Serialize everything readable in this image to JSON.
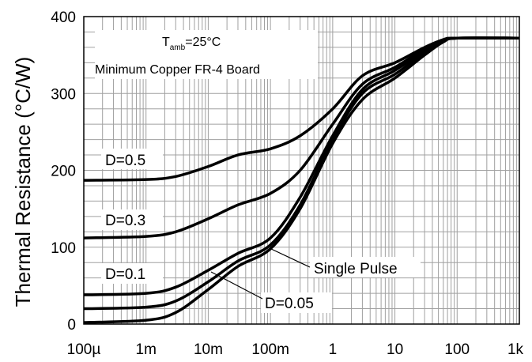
{
  "chart_data": {
    "type": "line",
    "x_scale": "log",
    "ylabel": "Thermal Resistance (°C/W)",
    "xlabel": "",
    "xlim": [
      0.0001,
      1000
    ],
    "ylim": [
      0,
      400
    ],
    "grid": true,
    "x_tick_labels": [
      "100µ",
      "1m",
      "10m",
      "100m",
      "1",
      "10",
      "100",
      "1k"
    ],
    "x_ticks": [
      0.0001,
      0.001,
      0.01,
      0.1,
      1,
      10,
      100,
      1000
    ],
    "y_ticks": [
      0,
      100,
      200,
      300,
      400
    ],
    "y_tick_labels": [
      "0",
      "100",
      "200",
      "300",
      "400"
    ],
    "conditions": {
      "t_symbol": "T",
      "t_subscript": "amb",
      "t_value": "=25°C",
      "board": "Minimum Copper FR-4 Board"
    },
    "series": [
      {
        "name": "D=0.5",
        "x": [
          0.0001,
          0.001,
          0.003,
          0.01,
          0.03,
          0.1,
          0.3,
          1,
          3,
          10,
          30,
          60,
          100,
          1000
        ],
        "y": [
          187,
          188,
          192,
          205,
          220,
          228,
          245,
          280,
          323,
          340,
          360,
          370,
          372,
          372
        ]
      },
      {
        "name": "D=0.3",
        "x": [
          0.0001,
          0.001,
          0.003,
          0.01,
          0.03,
          0.1,
          0.3,
          1,
          3,
          10,
          30,
          60,
          100,
          1000
        ],
        "y": [
          112,
          114,
          120,
          137,
          155,
          170,
          200,
          260,
          312,
          334,
          358,
          370,
          372,
          372
        ]
      },
      {
        "name": "D=0.1",
        "x": [
          0.0001,
          0.001,
          0.003,
          0.01,
          0.03,
          0.1,
          0.3,
          1,
          3,
          10,
          30,
          60,
          100,
          1000
        ],
        "y": [
          38,
          40,
          48,
          70,
          92,
          112,
          165,
          245,
          305,
          330,
          355,
          369,
          372,
          372
        ]
      },
      {
        "name": "D=0.05",
        "x": [
          0.0001,
          0.001,
          0.003,
          0.01,
          0.03,
          0.1,
          0.3,
          1,
          3,
          10,
          30,
          60,
          100,
          1000
        ],
        "y": [
          20,
          22,
          30,
          55,
          82,
          103,
          155,
          240,
          300,
          325,
          353,
          368,
          372,
          372
        ]
      },
      {
        "name": "Single Pulse",
        "x": [
          0.0001,
          0.001,
          0.003,
          0.01,
          0.03,
          0.1,
          0.3,
          1,
          3,
          10,
          30,
          60,
          100,
          1000
        ],
        "y": [
          2,
          5,
          15,
          45,
          75,
          98,
          150,
          235,
          292,
          320,
          350,
          367,
          372,
          372
        ]
      }
    ]
  },
  "style": {
    "line_color": "#000000",
    "grid_color": "#a0a0a0",
    "frame_color": "#000000"
  }
}
